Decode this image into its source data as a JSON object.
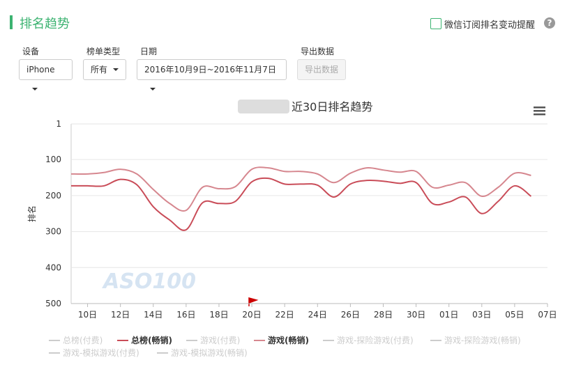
{
  "header": {
    "title": "排名趋势",
    "subscribe": "微信订阅排名变动提醒"
  },
  "controls": {
    "device": {
      "label": "设备",
      "value": "iPhone"
    },
    "list_type": {
      "label": "榜单类型",
      "value": "所有"
    },
    "date": {
      "label": "日期",
      "value": "2016年10月9日~2016年11月7日"
    },
    "export": {
      "label": "导出数据",
      "button": "导出数据"
    }
  },
  "chart_data": {
    "type": "line",
    "title": "近30日排名趋势",
    "y_label": "排名",
    "watermark": "ASO100",
    "categories": [
      null,
      "10日",
      null,
      "12日",
      null,
      "14日",
      null,
      "16日",
      null,
      "18日",
      null,
      "20日",
      null,
      "22日",
      null,
      "24日",
      null,
      "26日",
      null,
      "28日",
      null,
      "30日",
      null,
      "01日",
      null,
      "03日",
      null,
      "05日",
      null,
      "07日"
    ],
    "ylim": [
      1,
      500
    ],
    "y_reversed": true,
    "yticks": [
      1,
      100,
      200,
      300,
      400,
      500
    ],
    "grid": true,
    "series": [
      {
        "name": "总榜(付费)",
        "visible": false,
        "color": "#cccccc",
        "values": [
          null,
          null,
          null,
          null,
          null,
          null,
          null,
          null,
          null,
          null,
          null,
          null,
          null,
          null,
          null,
          null,
          null,
          null,
          null,
          null,
          null,
          null,
          null,
          null,
          null,
          null,
          null,
          null,
          null,
          null
        ]
      },
      {
        "name": "总榜(畅销)",
        "visible": true,
        "color": "#c94c58",
        "values": [
          173,
          173,
          173,
          155,
          170,
          231,
          268,
          295,
          220,
          222,
          216,
          162,
          152,
          168,
          168,
          171,
          204,
          168,
          158,
          160,
          166,
          164,
          222,
          218,
          204,
          250,
          216,
          173,
          202,
          null
        ]
      },
      {
        "name": "游戏(付费)",
        "visible": false,
        "color": "#cccccc",
        "values": [
          null,
          null,
          null,
          null,
          null,
          null,
          null,
          null,
          null,
          null,
          null,
          null,
          null,
          null,
          null,
          null,
          null,
          null,
          null,
          null,
          null,
          null,
          null,
          null,
          null,
          null,
          null,
          null,
          null,
          null
        ]
      },
      {
        "name": "游戏(畅销)",
        "visible": true,
        "color": "#d6878f",
        "values": [
          140,
          140,
          136,
          127,
          140,
          183,
          222,
          241,
          177,
          181,
          175,
          127,
          123,
          133,
          133,
          140,
          164,
          138,
          123,
          129,
          135,
          133,
          177,
          171,
          164,
          202,
          177,
          138,
          144,
          null
        ]
      },
      {
        "name": "游戏-探险游戏(付费)",
        "visible": false,
        "color": "#cccccc",
        "values": [
          null,
          null,
          null,
          null,
          null,
          null,
          null,
          null,
          null,
          null,
          null,
          null,
          null,
          null,
          null,
          null,
          null,
          null,
          null,
          null,
          null,
          null,
          null,
          null,
          null,
          null,
          null,
          null,
          null,
          null
        ]
      },
      {
        "name": "游戏-探险游戏(畅销)",
        "visible": false,
        "color": "#cccccc",
        "values": [
          null,
          null,
          null,
          null,
          null,
          null,
          null,
          null,
          null,
          null,
          null,
          null,
          null,
          null,
          null,
          null,
          null,
          null,
          null,
          null,
          null,
          null,
          null,
          null,
          null,
          null,
          null,
          null,
          null,
          null
        ]
      },
      {
        "name": "游戏-模拟游戏(付费)",
        "visible": false,
        "color": "#cccccc",
        "values": [
          null,
          null,
          null,
          null,
          null,
          null,
          null,
          null,
          null,
          null,
          null,
          null,
          null,
          null,
          null,
          null,
          null,
          null,
          null,
          null,
          null,
          null,
          null,
          null,
          null,
          null,
          null,
          null,
          null,
          null
        ]
      },
      {
        "name": "游戏-模拟游戏(畅销)",
        "visible": false,
        "color": "#cccccc",
        "values": [
          null,
          null,
          null,
          null,
          null,
          null,
          null,
          null,
          null,
          null,
          null,
          null,
          null,
          null,
          null,
          null,
          null,
          null,
          null,
          null,
          null,
          null,
          null,
          null,
          null,
          null,
          null,
          null,
          null,
          null
        ]
      }
    ]
  }
}
